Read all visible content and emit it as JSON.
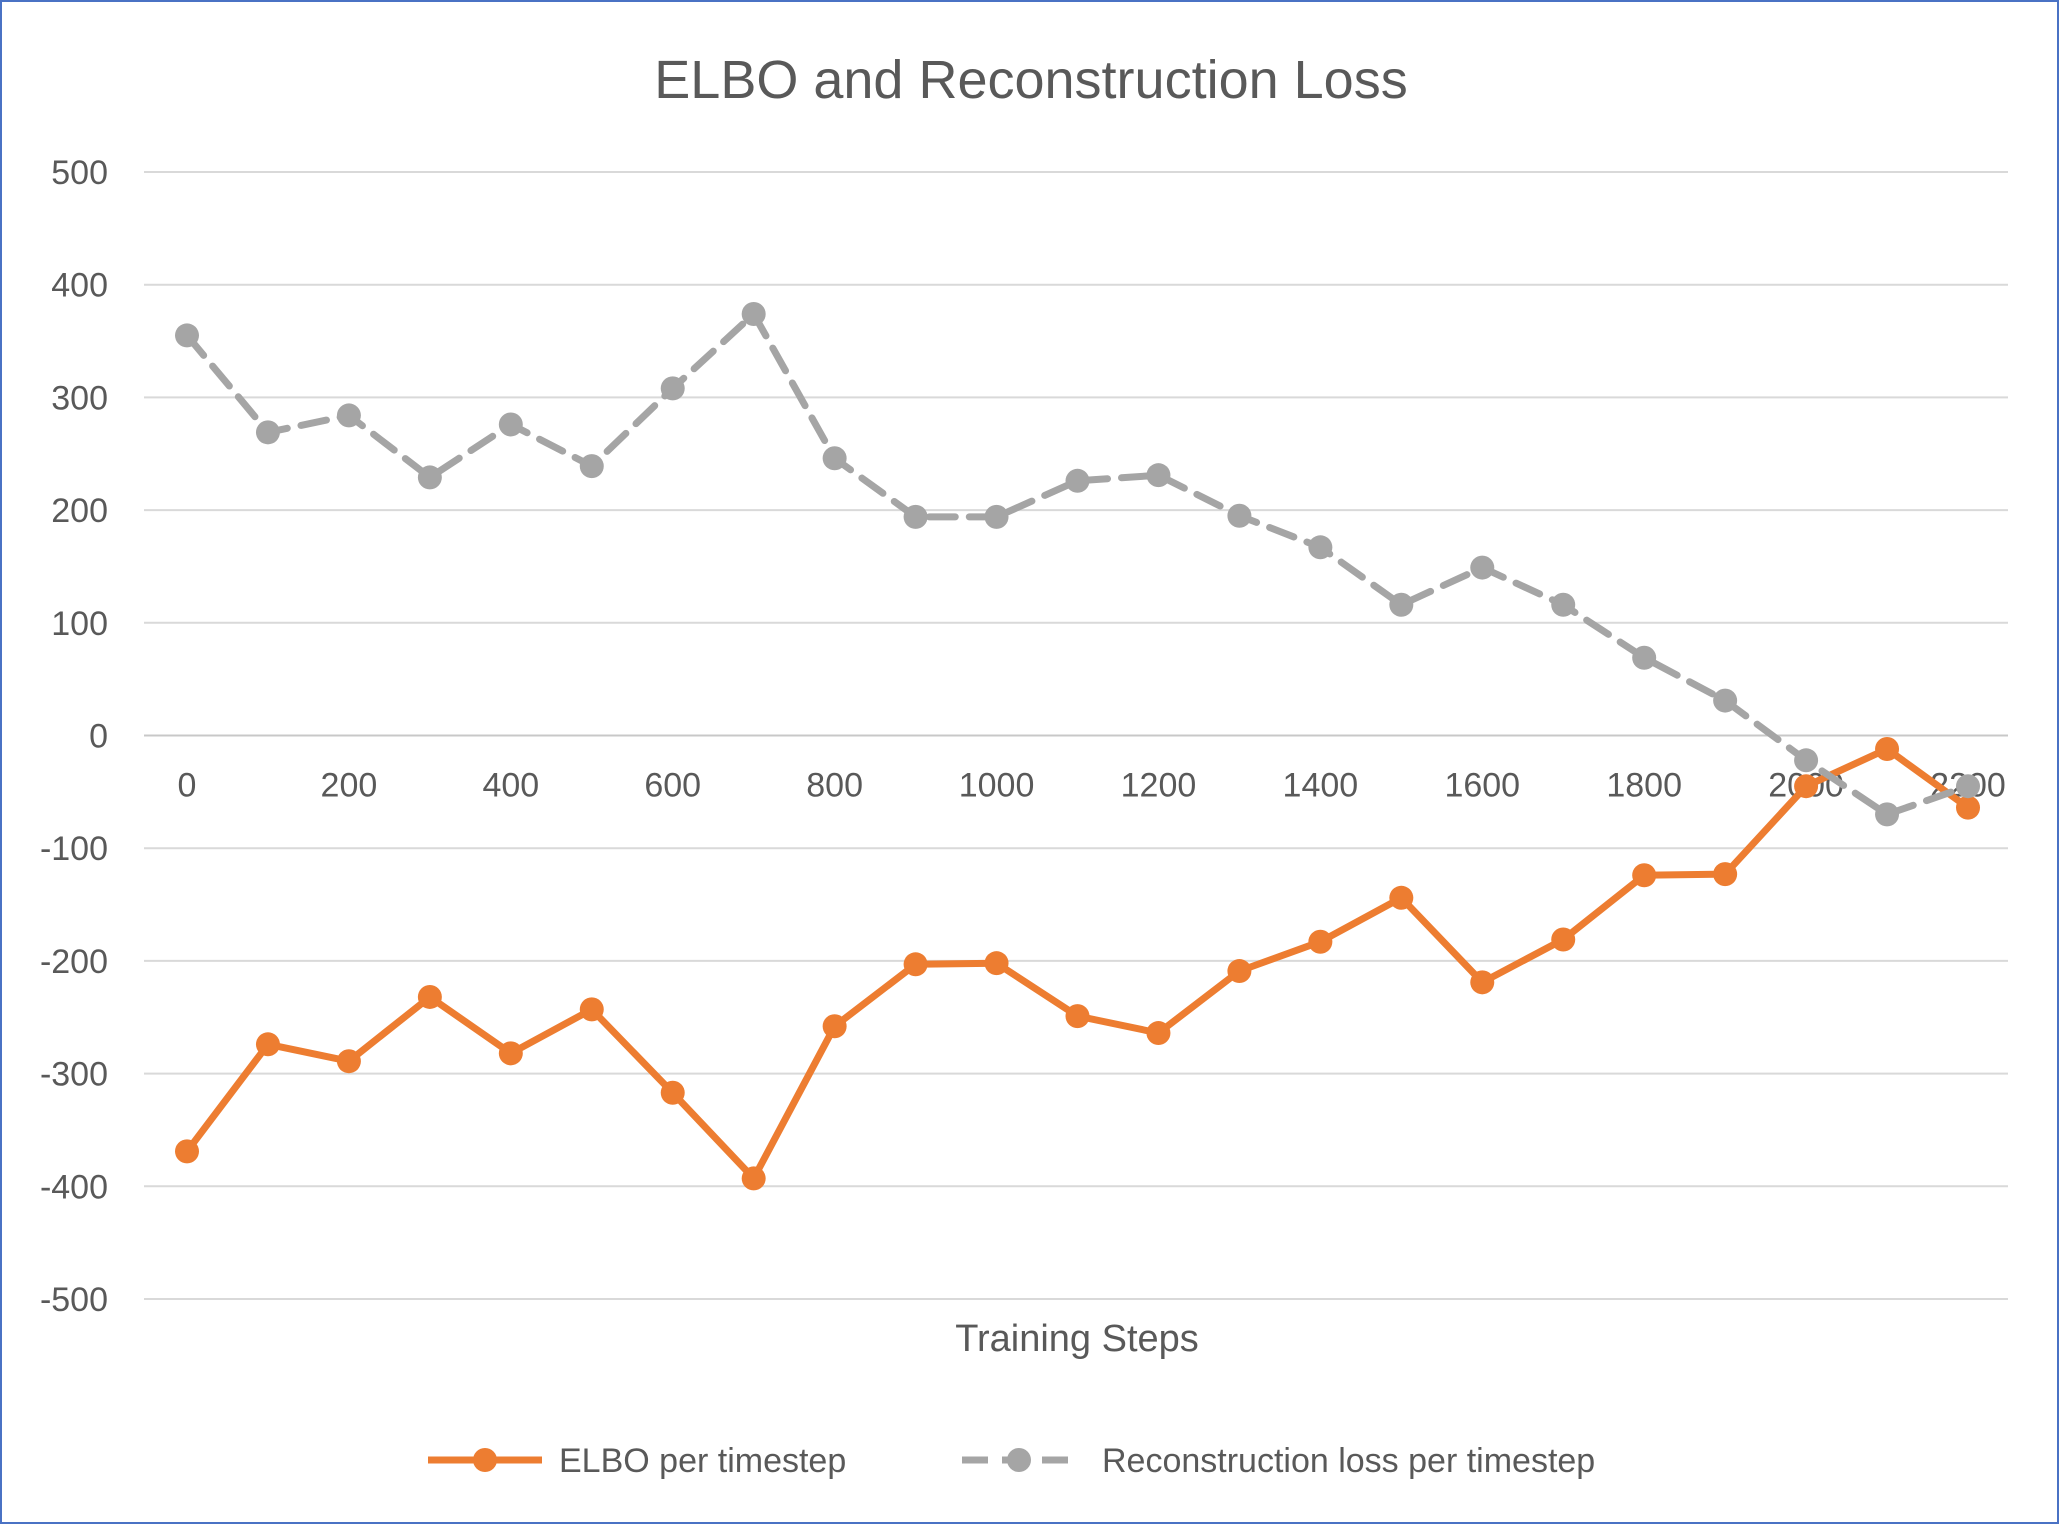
{
  "chart_data": {
    "type": "line",
    "title": "ELBO and Reconstruction Loss",
    "xlabel": "Training Steps",
    "ylabel": "",
    "xlim": [
      0,
      2200
    ],
    "ylim": [
      -500,
      500
    ],
    "x_ticks": [
      0,
      200,
      400,
      600,
      800,
      1000,
      1200,
      1400,
      1600,
      1800,
      2000,
      2200
    ],
    "y_ticks": [
      500,
      400,
      300,
      200,
      100,
      0,
      -100,
      -200,
      -300,
      -400,
      -500
    ],
    "grid": true,
    "legend_position": "bottom",
    "x": [
      0,
      100,
      200,
      300,
      400,
      500,
      600,
      700,
      800,
      900,
      1000,
      1100,
      1200,
      1300,
      1400,
      1500,
      1600,
      1700,
      1800,
      1900,
      2000,
      2100,
      2200
    ],
    "series": [
      {
        "name": "ELBO per timestep",
        "color": "#ed7d31",
        "line_style": "solid",
        "values": [
          -369,
          -274,
          -289,
          -232,
          -282,
          -243,
          -317,
          -393,
          -258,
          -203,
          -202,
          -249,
          -264,
          -209,
          -183,
          -144,
          -219,
          -181,
          -124,
          -123,
          -45,
          -12,
          -64
        ]
      },
      {
        "name": "Reconstruction loss per timestep",
        "color": "#a5a5a5",
        "line_style": "dashed",
        "values": [
          355,
          269,
          284,
          229,
          276,
          239,
          308,
          374,
          246,
          194,
          194,
          226,
          231,
          195,
          167,
          116,
          149,
          116,
          69,
          31,
          -22,
          -70,
          -45
        ]
      }
    ]
  }
}
